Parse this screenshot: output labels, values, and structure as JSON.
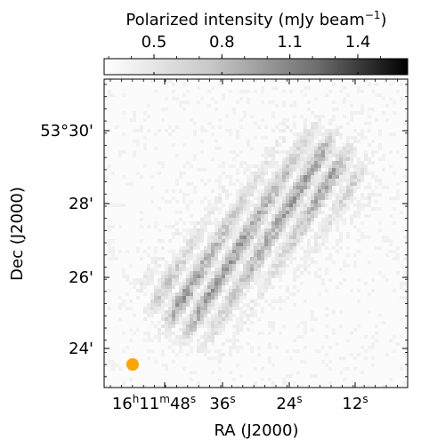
{
  "colorbar": {
    "label": "Polarized intensity (mJy beam",
    "label_exponent": "−1",
    "label_close": ")",
    "ticks": [
      {
        "value": 0.5,
        "text": "0.5"
      },
      {
        "value": 0.8,
        "text": "0.8"
      },
      {
        "value": 1.1,
        "text": "1.1"
      },
      {
        "value": 1.4,
        "text": "1.4"
      }
    ],
    "range": [
      0.28,
      1.62
    ],
    "colormap": "gray_r"
  },
  "axes": {
    "xlabel": "RA (J2000)",
    "ylabel": "Dec (J2000)",
    "x_ticks": [
      {
        "h": "16",
        "m": "11",
        "s": "48"
      },
      {
        "s": "36"
      },
      {
        "s": "24"
      },
      {
        "s": "12"
      }
    ],
    "y_ticks": [
      "53°30'",
      "28'",
      "26'",
      "24'"
    ],
    "units": {
      "h": "h",
      "m": "m",
      "s": "s"
    }
  },
  "beam": {
    "color": "#FFA500",
    "shape": "circle"
  },
  "image": {
    "description_type": "polarized intensity map",
    "structure": "faint diffuse emission elongated along a diagonal from lower-left to upper-right"
  }
}
